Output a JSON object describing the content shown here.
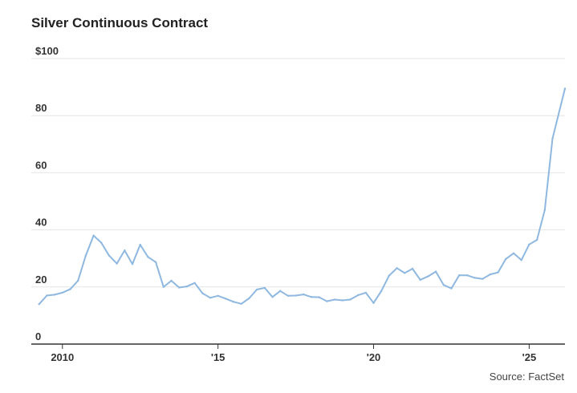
{
  "chart_data": {
    "type": "line",
    "title": "Silver Continuous Contract",
    "source": "Source: FactSet",
    "colors": {
      "line": "#8fb8e0",
      "grid": "#e6e6e6",
      "axis": "#333333"
    },
    "ylim": [
      0,
      100
    ],
    "xlim": [
      2009.0,
      2026.15
    ],
    "y_ticks": [
      {
        "value": 100,
        "label": "$100"
      },
      {
        "value": 80,
        "label": "80"
      },
      {
        "value": 60,
        "label": "60"
      },
      {
        "value": 40,
        "label": "40"
      },
      {
        "value": 20,
        "label": "20"
      },
      {
        "value": 0,
        "label": "0"
      }
    ],
    "x_ticks": [
      {
        "value": 2010,
        "label": "2010"
      },
      {
        "value": 2015,
        "label": "'15"
      },
      {
        "value": 2020,
        "label": "'20"
      },
      {
        "value": 2025,
        "label": "'25"
      }
    ],
    "grid": true,
    "series": [
      {
        "x": [
          2009.25,
          2009.5,
          2009.75,
          2010.0,
          2010.25,
          2010.5,
          2010.75,
          2011.0,
          2011.25,
          2011.5,
          2011.75,
          2012.0,
          2012.25,
          2012.5,
          2012.75,
          2013.0,
          2013.25,
          2013.5,
          2013.75,
          2014.0,
          2014.25,
          2014.5,
          2014.75,
          2015.0,
          2015.25,
          2015.5,
          2015.75,
          2016.0,
          2016.25,
          2016.5,
          2016.75,
          2017.0,
          2017.25,
          2017.5,
          2017.75,
          2018.0,
          2018.25,
          2018.5,
          2018.75,
          2019.0,
          2019.25,
          2019.5,
          2019.75,
          2020.0,
          2020.25,
          2020.5,
          2020.75,
          2021.0,
          2021.25,
          2021.5,
          2021.75,
          2022.0,
          2022.25,
          2022.5,
          2022.75,
          2023.0,
          2023.25,
          2023.5,
          2023.75,
          2024.0,
          2024.25,
          2024.5,
          2024.75,
          2025.0,
          2025.25,
          2025.5,
          2025.75,
          2026.15
        ],
        "values": [
          14,
          17,
          17.3,
          18,
          19.2,
          22.2,
          31,
          38,
          35.5,
          31,
          28.2,
          32.8,
          28,
          34.8,
          30.5,
          28.7,
          20,
          22.2,
          19.8,
          20.2,
          21.4,
          17.8,
          16.2,
          16.9,
          15.9,
          14.8,
          14.1,
          16,
          19.1,
          19.7,
          16.5,
          18.6,
          16.9,
          17,
          17.4,
          16.5,
          16.4,
          15,
          15.6,
          15.3,
          15.6,
          17.1,
          18,
          14.4,
          18.6,
          24,
          26.6,
          24.9,
          26.4,
          22.5,
          23.7,
          25.4,
          20.7,
          19.5,
          24.1,
          24.1,
          23.2,
          22.8,
          24.4,
          25.1,
          29.8,
          31.8,
          29.4,
          34.9,
          36.5,
          46.9,
          72,
          89.5
        ]
      }
    ]
  }
}
